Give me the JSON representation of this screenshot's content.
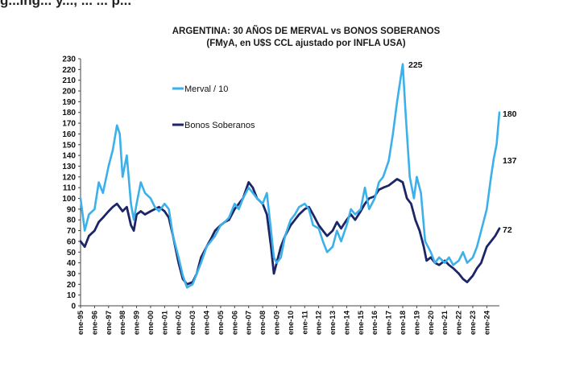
{
  "page": {
    "header_fragment": "g...ing... y..., ... ... p..."
  },
  "chart_data": {
    "type": "line",
    "title": "ARGENTINA: 30 AÑOS DE MERVAL vs BONOS SOBERANOS",
    "subtitle": "(FMyA, en U$S CCL ajustado por INFLA USA)",
    "ylim": [
      0,
      230
    ],
    "yticks": [
      0,
      10,
      20,
      30,
      40,
      50,
      60,
      70,
      80,
      90,
      100,
      110,
      120,
      130,
      140,
      150,
      160,
      170,
      180,
      190,
      200,
      210,
      220,
      230
    ],
    "x_range": [
      1995.0,
      2024.9
    ],
    "x_tick_labels": [
      "ene-95",
      "ene-96",
      "ene-97",
      "ene-98",
      "ene-99",
      "ene-00",
      "ene-01",
      "ene-02",
      "ene-03",
      "ene-04",
      "ene-05",
      "ene-06",
      "ene-07",
      "ene-08",
      "ene-09",
      "ene-10",
      "ene-11",
      "ene-12",
      "ene-13",
      "ene-14",
      "ene-15",
      "ene-16",
      "ene-17",
      "ene-18",
      "ene-19",
      "ene-20",
      "ene-21",
      "ene-22",
      "ene-23",
      "ene-24"
    ],
    "legend_position": "upper-left",
    "series": [
      {
        "name": "Merval / 10",
        "color": "#3cb0ea",
        "end_label": "180",
        "mid_label": "137",
        "peak_label": "225",
        "points": [
          [
            1995.0,
            100
          ],
          [
            1995.3,
            70
          ],
          [
            1995.6,
            85
          ],
          [
            1996.0,
            90
          ],
          [
            1996.3,
            115
          ],
          [
            1996.6,
            105
          ],
          [
            1997.0,
            130
          ],
          [
            1997.3,
            145
          ],
          [
            1997.6,
            168
          ],
          [
            1997.8,
            160
          ],
          [
            1998.0,
            120
          ],
          [
            1998.3,
            140
          ],
          [
            1998.6,
            95
          ],
          [
            1998.8,
            80
          ],
          [
            1999.0,
            95
          ],
          [
            1999.3,
            115
          ],
          [
            1999.6,
            105
          ],
          [
            2000.0,
            100
          ],
          [
            2000.3,
            92
          ],
          [
            2000.6,
            88
          ],
          [
            2001.0,
            95
          ],
          [
            2001.3,
            90
          ],
          [
            2001.6,
            65
          ],
          [
            2002.0,
            45
          ],
          [
            2002.3,
            28
          ],
          [
            2002.6,
            17
          ],
          [
            2003.0,
            20
          ],
          [
            2003.3,
            30
          ],
          [
            2003.6,
            40
          ],
          [
            2004.0,
            55
          ],
          [
            2004.3,
            60
          ],
          [
            2004.6,
            65
          ],
          [
            2005.0,
            75
          ],
          [
            2005.3,
            78
          ],
          [
            2005.6,
            82
          ],
          [
            2006.0,
            95
          ],
          [
            2006.3,
            90
          ],
          [
            2006.6,
            100
          ],
          [
            2007.0,
            110
          ],
          [
            2007.3,
            105
          ],
          [
            2007.6,
            100
          ],
          [
            2008.0,
            95
          ],
          [
            2008.3,
            105
          ],
          [
            2008.6,
            70
          ],
          [
            2008.8,
            45
          ],
          [
            2009.0,
            40
          ],
          [
            2009.3,
            45
          ],
          [
            2009.6,
            65
          ],
          [
            2010.0,
            80
          ],
          [
            2010.3,
            85
          ],
          [
            2010.6,
            92
          ],
          [
            2011.0,
            95
          ],
          [
            2011.3,
            90
          ],
          [
            2011.6,
            75
          ],
          [
            2012.0,
            72
          ],
          [
            2012.3,
            60
          ],
          [
            2012.6,
            50
          ],
          [
            2013.0,
            55
          ],
          [
            2013.3,
            70
          ],
          [
            2013.6,
            60
          ],
          [
            2014.0,
            75
          ],
          [
            2014.3,
            90
          ],
          [
            2014.6,
            85
          ],
          [
            2015.0,
            90
          ],
          [
            2015.3,
            110
          ],
          [
            2015.6,
            90
          ],
          [
            2016.0,
            100
          ],
          [
            2016.3,
            115
          ],
          [
            2016.6,
            120
          ],
          [
            2017.0,
            135
          ],
          [
            2017.3,
            160
          ],
          [
            2017.6,
            190
          ],
          [
            2018.0,
            225
          ],
          [
            2018.2,
            180
          ],
          [
            2018.5,
            120
          ],
          [
            2018.8,
            100
          ],
          [
            2019.0,
            120
          ],
          [
            2019.3,
            105
          ],
          [
            2019.6,
            60
          ],
          [
            2020.0,
            50
          ],
          [
            2020.3,
            40
          ],
          [
            2020.6,
            45
          ],
          [
            2021.0,
            40
          ],
          [
            2021.3,
            45
          ],
          [
            2021.6,
            38
          ],
          [
            2022.0,
            42
          ],
          [
            2022.3,
            50
          ],
          [
            2022.6,
            40
          ],
          [
            2023.0,
            45
          ],
          [
            2023.3,
            55
          ],
          [
            2023.6,
            70
          ],
          [
            2024.0,
            90
          ],
          [
            2024.3,
            120
          ],
          [
            2024.5,
            137
          ],
          [
            2024.7,
            150
          ],
          [
            2024.9,
            180
          ]
        ]
      },
      {
        "name": "Bonos Soberanos",
        "color": "#1c2566",
        "end_label": "72",
        "points": [
          [
            1995.0,
            60
          ],
          [
            1995.3,
            55
          ],
          [
            1995.6,
            65
          ],
          [
            1996.0,
            70
          ],
          [
            1996.3,
            78
          ],
          [
            1996.6,
            82
          ],
          [
            1997.0,
            88
          ],
          [
            1997.3,
            92
          ],
          [
            1997.6,
            95
          ],
          [
            1998.0,
            88
          ],
          [
            1998.3,
            92
          ],
          [
            1998.6,
            75
          ],
          [
            1998.8,
            70
          ],
          [
            1999.0,
            85
          ],
          [
            1999.3,
            88
          ],
          [
            1999.6,
            85
          ],
          [
            2000.0,
            88
          ],
          [
            2000.3,
            90
          ],
          [
            2000.6,
            92
          ],
          [
            2001.0,
            88
          ],
          [
            2001.3,
            82
          ],
          [
            2001.6,
            65
          ],
          [
            2002.0,
            40
          ],
          [
            2002.3,
            25
          ],
          [
            2002.6,
            20
          ],
          [
            2003.0,
            22
          ],
          [
            2003.3,
            30
          ],
          [
            2003.6,
            45
          ],
          [
            2004.0,
            55
          ],
          [
            2004.3,
            62
          ],
          [
            2004.6,
            70
          ],
          [
            2005.0,
            75
          ],
          [
            2005.3,
            78
          ],
          [
            2005.6,
            80
          ],
          [
            2006.0,
            90
          ],
          [
            2006.3,
            95
          ],
          [
            2006.6,
            100
          ],
          [
            2007.0,
            115
          ],
          [
            2007.3,
            110
          ],
          [
            2007.6,
            100
          ],
          [
            2008.0,
            95
          ],
          [
            2008.3,
            85
          ],
          [
            2008.6,
            55
          ],
          [
            2008.8,
            30
          ],
          [
            2009.0,
            40
          ],
          [
            2009.3,
            55
          ],
          [
            2009.6,
            65
          ],
          [
            2010.0,
            75
          ],
          [
            2010.3,
            80
          ],
          [
            2010.6,
            85
          ],
          [
            2011.0,
            90
          ],
          [
            2011.3,
            92
          ],
          [
            2011.6,
            85
          ],
          [
            2012.0,
            75
          ],
          [
            2012.3,
            70
          ],
          [
            2012.6,
            65
          ],
          [
            2013.0,
            70
          ],
          [
            2013.3,
            78
          ],
          [
            2013.6,
            72
          ],
          [
            2014.0,
            80
          ],
          [
            2014.3,
            85
          ],
          [
            2014.6,
            80
          ],
          [
            2015.0,
            88
          ],
          [
            2015.3,
            95
          ],
          [
            2015.6,
            100
          ],
          [
            2016.0,
            102
          ],
          [
            2016.3,
            108
          ],
          [
            2016.6,
            110
          ],
          [
            2017.0,
            112
          ],
          [
            2017.3,
            115
          ],
          [
            2017.6,
            118
          ],
          [
            2018.0,
            115
          ],
          [
            2018.3,
            100
          ],
          [
            2018.6,
            95
          ],
          [
            2018.9,
            80
          ],
          [
            2019.2,
            70
          ],
          [
            2019.5,
            55
          ],
          [
            2019.7,
            42
          ],
          [
            2020.0,
            45
          ],
          [
            2020.3,
            40
          ],
          [
            2020.6,
            38
          ],
          [
            2021.0,
            42
          ],
          [
            2021.3,
            38
          ],
          [
            2021.6,
            35
          ],
          [
            2022.0,
            30
          ],
          [
            2022.3,
            25
          ],
          [
            2022.6,
            22
          ],
          [
            2023.0,
            28
          ],
          [
            2023.3,
            35
          ],
          [
            2023.6,
            40
          ],
          [
            2024.0,
            55
          ],
          [
            2024.3,
            60
          ],
          [
            2024.6,
            65
          ],
          [
            2024.9,
            72
          ]
        ]
      }
    ]
  }
}
